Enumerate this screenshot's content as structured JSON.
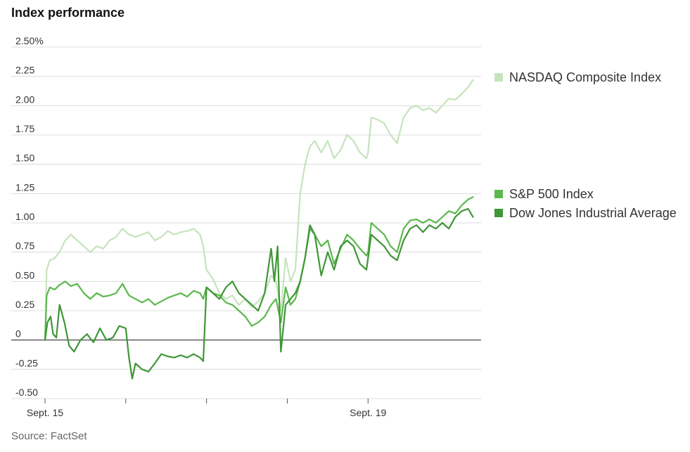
{
  "chart_data": {
    "type": "line",
    "title": "Index performance",
    "source": "Source: FactSet",
    "xlabel": "",
    "ylabel": "",
    "ylim": [
      -0.5,
      2.5
    ],
    "y_ticks": [
      {
        "value": 2.5,
        "label": "2.50%"
      },
      {
        "value": 2.25,
        "label": "2.25"
      },
      {
        "value": 2.0,
        "label": "2.00"
      },
      {
        "value": 1.75,
        "label": "1.75"
      },
      {
        "value": 1.5,
        "label": "1.50"
      },
      {
        "value": 1.25,
        "label": "1.25"
      },
      {
        "value": 1.0,
        "label": "1.00"
      },
      {
        "value": 0.75,
        "label": "0.75"
      },
      {
        "value": 0.5,
        "label": "0.50"
      },
      {
        "value": 0.25,
        "label": "0.25"
      },
      {
        "value": 0,
        "label": "0"
      },
      {
        "value": -0.25,
        "label": "-0.25"
      },
      {
        "value": -0.5,
        "label": "-0.50"
      }
    ],
    "x_range": [
      0,
      5.4
    ],
    "x_ticks": [
      {
        "value": 0,
        "label": "Sept. 15"
      },
      {
        "value": 1,
        "label": ""
      },
      {
        "value": 2,
        "label": ""
      },
      {
        "value": 3,
        "label": ""
      },
      {
        "value": 4,
        "label": "Sept. 19"
      }
    ],
    "grid": true,
    "legend_position": "right",
    "series": [
      {
        "name": "NASDAQ Composite Index",
        "color": "#c6e3bd",
        "points": [
          [
            0,
            0
          ],
          [
            0.02,
            0.6
          ],
          [
            0.06,
            0.68
          ],
          [
            0.12,
            0.7
          ],
          [
            0.18,
            0.75
          ],
          [
            0.25,
            0.85
          ],
          [
            0.32,
            0.9
          ],
          [
            0.4,
            0.85
          ],
          [
            0.48,
            0.8
          ],
          [
            0.56,
            0.75
          ],
          [
            0.64,
            0.8
          ],
          [
            0.72,
            0.78
          ],
          [
            0.8,
            0.85
          ],
          [
            0.88,
            0.88
          ],
          [
            0.96,
            0.95
          ],
          [
            1.04,
            0.9
          ],
          [
            1.12,
            0.88
          ],
          [
            1.2,
            0.9
          ],
          [
            1.28,
            0.92
          ],
          [
            1.36,
            0.85
          ],
          [
            1.44,
            0.88
          ],
          [
            1.52,
            0.93
          ],
          [
            1.6,
            0.9
          ],
          [
            1.68,
            0.92
          ],
          [
            1.76,
            0.93
          ],
          [
            1.84,
            0.95
          ],
          [
            1.92,
            0.9
          ],
          [
            1.96,
            0.8
          ],
          [
            2.0,
            0.6
          ],
          [
            2.08,
            0.52
          ],
          [
            2.16,
            0.4
          ],
          [
            2.24,
            0.35
          ],
          [
            2.32,
            0.38
          ],
          [
            2.4,
            0.3
          ],
          [
            2.48,
            0.35
          ],
          [
            2.56,
            0.28
          ],
          [
            2.64,
            0.33
          ],
          [
            2.72,
            0.4
          ],
          [
            2.8,
            0.55
          ],
          [
            2.86,
            0.5
          ],
          [
            2.92,
            0.25
          ],
          [
            2.98,
            0.7
          ],
          [
            3.04,
            0.5
          ],
          [
            3.1,
            0.6
          ],
          [
            3.16,
            1.25
          ],
          [
            3.22,
            1.5
          ],
          [
            3.28,
            1.65
          ],
          [
            3.34,
            1.7
          ],
          [
            3.42,
            1.6
          ],
          [
            3.5,
            1.7
          ],
          [
            3.58,
            1.55
          ],
          [
            3.66,
            1.62
          ],
          [
            3.74,
            1.75
          ],
          [
            3.82,
            1.7
          ],
          [
            3.9,
            1.6
          ],
          [
            3.98,
            1.55
          ],
          [
            4.0,
            1.6
          ],
          [
            4.04,
            1.9
          ],
          [
            4.12,
            1.88
          ],
          [
            4.2,
            1.85
          ],
          [
            4.28,
            1.75
          ],
          [
            4.36,
            1.68
          ],
          [
            4.44,
            1.9
          ],
          [
            4.52,
            1.98
          ],
          [
            4.6,
            2.0
          ],
          [
            4.68,
            1.96
          ],
          [
            4.76,
            1.98
          ],
          [
            4.84,
            1.94
          ],
          [
            4.92,
            2.0
          ],
          [
            5.0,
            2.06
          ],
          [
            5.08,
            2.05
          ],
          [
            5.16,
            2.1
          ],
          [
            5.24,
            2.16
          ],
          [
            5.3,
            2.22
          ]
        ]
      },
      {
        "name": "S&P 500 Index",
        "color": "#5cb84e",
        "points": [
          [
            0,
            0
          ],
          [
            0.02,
            0.38
          ],
          [
            0.06,
            0.45
          ],
          [
            0.12,
            0.43
          ],
          [
            0.18,
            0.47
          ],
          [
            0.25,
            0.5
          ],
          [
            0.32,
            0.46
          ],
          [
            0.4,
            0.48
          ],
          [
            0.48,
            0.4
          ],
          [
            0.56,
            0.35
          ],
          [
            0.64,
            0.4
          ],
          [
            0.72,
            0.37
          ],
          [
            0.8,
            0.38
          ],
          [
            0.88,
            0.4
          ],
          [
            0.96,
            0.48
          ],
          [
            1.04,
            0.38
          ],
          [
            1.12,
            0.35
          ],
          [
            1.2,
            0.32
          ],
          [
            1.28,
            0.35
          ],
          [
            1.36,
            0.3
          ],
          [
            1.44,
            0.33
          ],
          [
            1.52,
            0.36
          ],
          [
            1.6,
            0.38
          ],
          [
            1.68,
            0.4
          ],
          [
            1.76,
            0.37
          ],
          [
            1.84,
            0.42
          ],
          [
            1.92,
            0.4
          ],
          [
            1.96,
            0.35
          ],
          [
            2.0,
            0.45
          ],
          [
            2.08,
            0.4
          ],
          [
            2.16,
            0.38
          ],
          [
            2.24,
            0.32
          ],
          [
            2.32,
            0.3
          ],
          [
            2.4,
            0.25
          ],
          [
            2.48,
            0.2
          ],
          [
            2.56,
            0.12
          ],
          [
            2.64,
            0.15
          ],
          [
            2.72,
            0.2
          ],
          [
            2.8,
            0.3
          ],
          [
            2.86,
            0.35
          ],
          [
            2.92,
            0.15
          ],
          [
            2.98,
            0.45
          ],
          [
            3.04,
            0.3
          ],
          [
            3.1,
            0.35
          ],
          [
            3.16,
            0.5
          ],
          [
            3.22,
            0.7
          ],
          [
            3.28,
            0.95
          ],
          [
            3.34,
            0.9
          ],
          [
            3.42,
            0.8
          ],
          [
            3.5,
            0.85
          ],
          [
            3.58,
            0.65
          ],
          [
            3.66,
            0.78
          ],
          [
            3.74,
            0.9
          ],
          [
            3.82,
            0.85
          ],
          [
            3.9,
            0.78
          ],
          [
            3.98,
            0.72
          ],
          [
            4.0,
            0.75
          ],
          [
            4.04,
            1.0
          ],
          [
            4.12,
            0.95
          ],
          [
            4.2,
            0.9
          ],
          [
            4.28,
            0.8
          ],
          [
            4.36,
            0.75
          ],
          [
            4.44,
            0.95
          ],
          [
            4.52,
            1.02
          ],
          [
            4.6,
            1.03
          ],
          [
            4.68,
            1.0
          ],
          [
            4.76,
            1.03
          ],
          [
            4.84,
            1.0
          ],
          [
            4.92,
            1.05
          ],
          [
            5.0,
            1.1
          ],
          [
            5.08,
            1.08
          ],
          [
            5.16,
            1.15
          ],
          [
            5.24,
            1.2
          ],
          [
            5.3,
            1.22
          ]
        ]
      },
      {
        "name": "Dow Jones Industrial Average",
        "color": "#3f9637",
        "points": [
          [
            0,
            0
          ],
          [
            0.03,
            0.15
          ],
          [
            0.07,
            0.2
          ],
          [
            0.1,
            0.05
          ],
          [
            0.14,
            0.02
          ],
          [
            0.18,
            0.3
          ],
          [
            0.24,
            0.15
          ],
          [
            0.3,
            -0.05
          ],
          [
            0.36,
            -0.1
          ],
          [
            0.44,
            0.0
          ],
          [
            0.52,
            0.05
          ],
          [
            0.6,
            -0.02
          ],
          [
            0.68,
            0.1
          ],
          [
            0.76,
            0.0
          ],
          [
            0.84,
            0.02
          ],
          [
            0.92,
            0.12
          ],
          [
            1.0,
            0.1
          ],
          [
            1.04,
            -0.15
          ],
          [
            1.08,
            -0.33
          ],
          [
            1.12,
            -0.2
          ],
          [
            1.2,
            -0.25
          ],
          [
            1.28,
            -0.27
          ],
          [
            1.36,
            -0.2
          ],
          [
            1.44,
            -0.12
          ],
          [
            1.52,
            -0.14
          ],
          [
            1.6,
            -0.15
          ],
          [
            1.68,
            -0.13
          ],
          [
            1.76,
            -0.15
          ],
          [
            1.84,
            -0.12
          ],
          [
            1.92,
            -0.15
          ],
          [
            1.96,
            -0.18
          ],
          [
            2.0,
            0.45
          ],
          [
            2.08,
            0.4
          ],
          [
            2.16,
            0.35
          ],
          [
            2.24,
            0.45
          ],
          [
            2.32,
            0.5
          ],
          [
            2.4,
            0.4
          ],
          [
            2.48,
            0.35
          ],
          [
            2.56,
            0.3
          ],
          [
            2.64,
            0.25
          ],
          [
            2.72,
            0.4
          ],
          [
            2.8,
            0.78
          ],
          [
            2.84,
            0.5
          ],
          [
            2.88,
            0.8
          ],
          [
            2.92,
            -0.1
          ],
          [
            2.98,
            0.3
          ],
          [
            3.04,
            0.35
          ],
          [
            3.1,
            0.4
          ],
          [
            3.16,
            0.5
          ],
          [
            3.22,
            0.7
          ],
          [
            3.28,
            0.98
          ],
          [
            3.34,
            0.9
          ],
          [
            3.42,
            0.55
          ],
          [
            3.5,
            0.75
          ],
          [
            3.58,
            0.6
          ],
          [
            3.66,
            0.8
          ],
          [
            3.74,
            0.85
          ],
          [
            3.82,
            0.8
          ],
          [
            3.9,
            0.65
          ],
          [
            3.98,
            0.6
          ],
          [
            4.0,
            0.7
          ],
          [
            4.04,
            0.9
          ],
          [
            4.12,
            0.85
          ],
          [
            4.2,
            0.8
          ],
          [
            4.28,
            0.72
          ],
          [
            4.36,
            0.68
          ],
          [
            4.44,
            0.85
          ],
          [
            4.52,
            0.95
          ],
          [
            4.6,
            0.98
          ],
          [
            4.68,
            0.92
          ],
          [
            4.76,
            0.98
          ],
          [
            4.84,
            0.95
          ],
          [
            4.92,
            1.0
          ],
          [
            5.0,
            0.95
          ],
          [
            5.08,
            1.05
          ],
          [
            5.16,
            1.1
          ],
          [
            5.24,
            1.12
          ],
          [
            5.3,
            1.05
          ]
        ]
      }
    ]
  }
}
